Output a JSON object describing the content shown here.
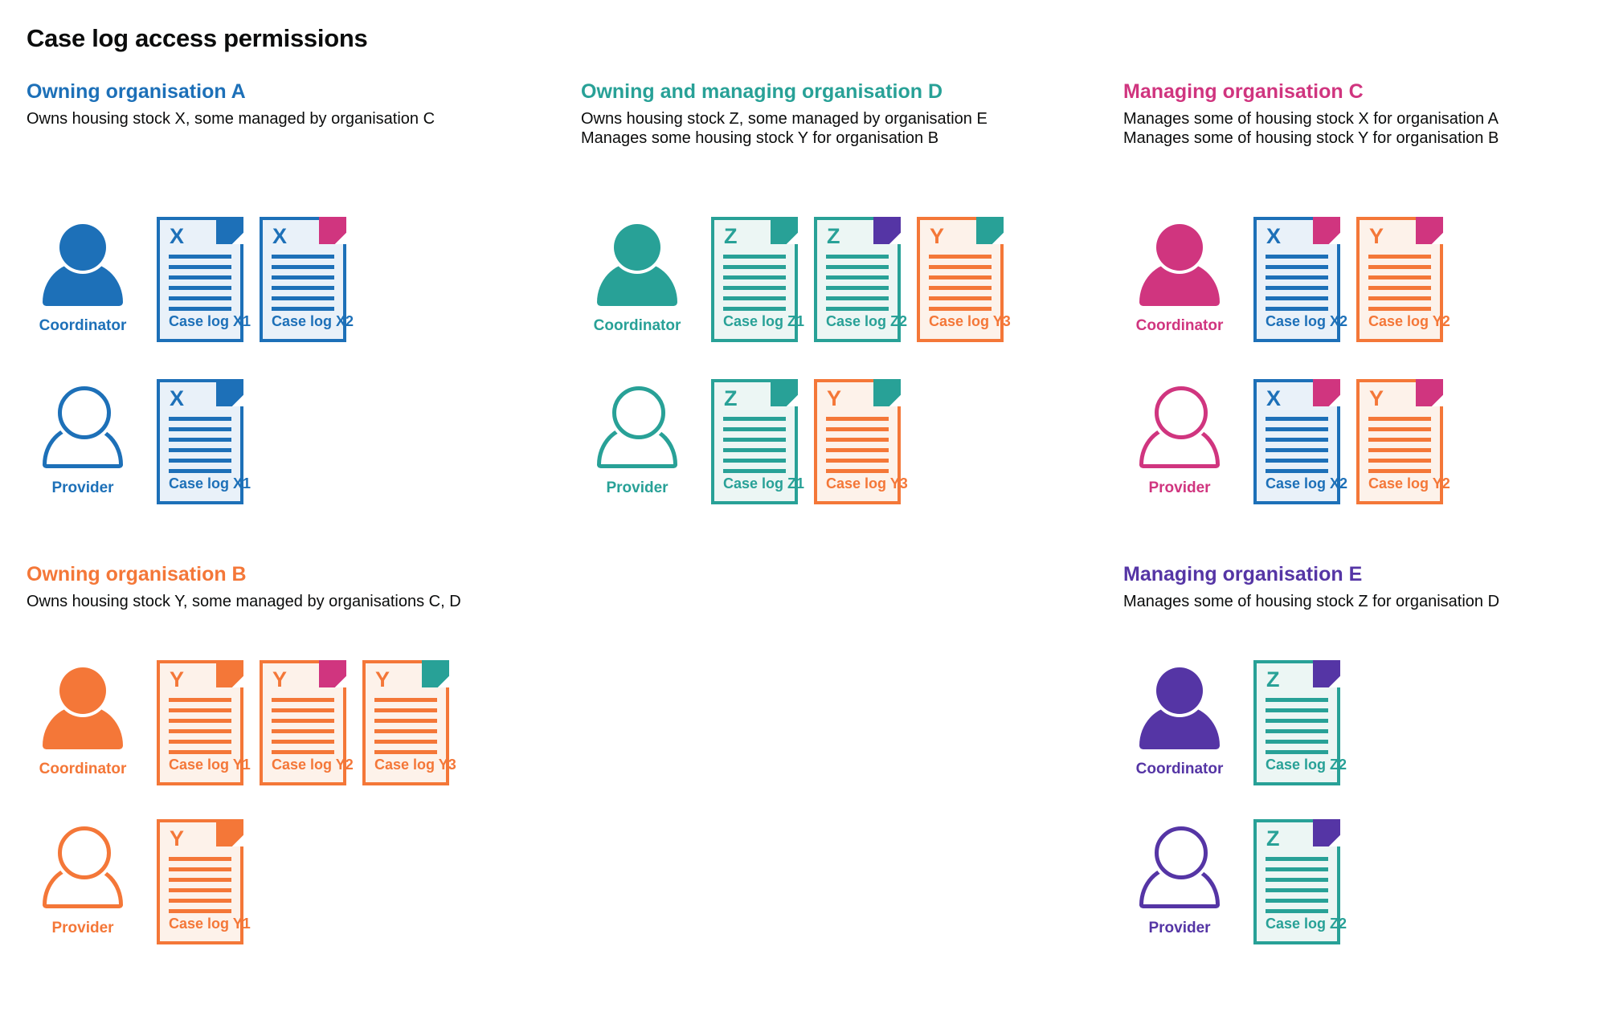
{
  "title": "Case log access permissions",
  "colors": {
    "blue": "#1d70b8",
    "teal": "#28a197",
    "pink": "#d0357f",
    "orange": "#f47738",
    "purple": "#5535a5",
    "text": "#0b0c0c",
    "doc_bg_blue": "#e9f1f9",
    "doc_bg_teal": "#ecf6f4",
    "doc_bg_orange": "#fdf2ea"
  },
  "organisations": [
    {
      "id": "A",
      "heading": "Owning organisation A",
      "color": "#1d70b8",
      "description": [
        "Owns housing stock X, some managed by organisation C"
      ],
      "rows": [
        {
          "role": "Coordinator",
          "docs": [
            {
              "letter": "X",
              "label": "Case log X1",
              "color": "#1d70b8",
              "bg": "#e9f1f9",
              "fold": "#1d70b8"
            },
            {
              "letter": "X",
              "label": "Case log X2",
              "color": "#1d70b8",
              "bg": "#e9f1f9",
              "fold": "#d0357f"
            }
          ]
        },
        {
          "role": "Provider",
          "docs": [
            {
              "letter": "X",
              "label": "Case log X1",
              "color": "#1d70b8",
              "bg": "#e9f1f9",
              "fold": "#1d70b8"
            }
          ]
        }
      ]
    },
    {
      "id": "D",
      "heading": "Owning and managing organisation D",
      "color": "#28a197",
      "description": [
        "Owns housing stock Z, some managed by organisation E",
        "Manages some housing stock Y for organisation B"
      ],
      "rows": [
        {
          "role": "Coordinator",
          "docs": [
            {
              "letter": "Z",
              "label": "Case log Z1",
              "color": "#28a197",
              "bg": "#ecf6f4",
              "fold": "#28a197"
            },
            {
              "letter": "Z",
              "label": "Case log Z2",
              "color": "#28a197",
              "bg": "#ecf6f4",
              "fold": "#5535a5"
            },
            {
              "letter": "Y",
              "label": "Case log Y3",
              "color": "#f47738",
              "bg": "#fdf2ea",
              "fold": "#28a197"
            }
          ]
        },
        {
          "role": "Provider",
          "docs": [
            {
              "letter": "Z",
              "label": "Case log Z1",
              "color": "#28a197",
              "bg": "#ecf6f4",
              "fold": "#28a197"
            },
            {
              "letter": "Y",
              "label": "Case log Y3",
              "color": "#f47738",
              "bg": "#fdf2ea",
              "fold": "#28a197"
            }
          ]
        }
      ]
    },
    {
      "id": "C",
      "heading": "Managing organisation C",
      "color": "#d0357f",
      "description": [
        "Manages some of housing stock X for organisation A",
        "Manages some of housing stock Y for organisation B"
      ],
      "rows": [
        {
          "role": "Coordinator",
          "docs": [
            {
              "letter": "X",
              "label": "Case log X2",
              "color": "#1d70b8",
              "bg": "#e9f1f9",
              "fold": "#d0357f"
            },
            {
              "letter": "Y",
              "label": "Case log Y2",
              "color": "#f47738",
              "bg": "#fdf2ea",
              "fold": "#d0357f"
            }
          ]
        },
        {
          "role": "Provider",
          "docs": [
            {
              "letter": "X",
              "label": "Case log X2",
              "color": "#1d70b8",
              "bg": "#e9f1f9",
              "fold": "#d0357f"
            },
            {
              "letter": "Y",
              "label": "Case log Y2",
              "color": "#f47738",
              "bg": "#fdf2ea",
              "fold": "#d0357f"
            }
          ]
        }
      ]
    },
    {
      "id": "B",
      "heading": "Owning organisation B",
      "color": "#f47738",
      "description": [
        "Owns housing stock Y, some managed by organisations C, D"
      ],
      "rows": [
        {
          "role": "Coordinator",
          "docs": [
            {
              "letter": "Y",
              "label": "Case log Y1",
              "color": "#f47738",
              "bg": "#fdf2ea",
              "fold": "#f47738"
            },
            {
              "letter": "Y",
              "label": "Case log Y2",
              "color": "#f47738",
              "bg": "#fdf2ea",
              "fold": "#d0357f"
            },
            {
              "letter": "Y",
              "label": "Case log Y3",
              "color": "#f47738",
              "bg": "#fdf2ea",
              "fold": "#28a197"
            }
          ]
        },
        {
          "role": "Provider",
          "docs": [
            {
              "letter": "Y",
              "label": "Case log Y1",
              "color": "#f47738",
              "bg": "#fdf2ea",
              "fold": "#f47738"
            }
          ]
        }
      ]
    },
    {
      "id": "E",
      "heading": "Managing organisation E",
      "color": "#5535a5",
      "description": [
        "Manages some of housing stock Z for organisation D"
      ],
      "rows": [
        {
          "role": "Coordinator",
          "docs": [
            {
              "letter": "Z",
              "label": "Case log Z2",
              "color": "#28a197",
              "bg": "#ecf6f4",
              "fold": "#5535a5"
            }
          ]
        },
        {
          "role": "Provider",
          "docs": [
            {
              "letter": "Z",
              "label": "Case log Z2",
              "color": "#28a197",
              "bg": "#ecf6f4",
              "fold": "#5535a5"
            }
          ]
        }
      ]
    }
  ]
}
